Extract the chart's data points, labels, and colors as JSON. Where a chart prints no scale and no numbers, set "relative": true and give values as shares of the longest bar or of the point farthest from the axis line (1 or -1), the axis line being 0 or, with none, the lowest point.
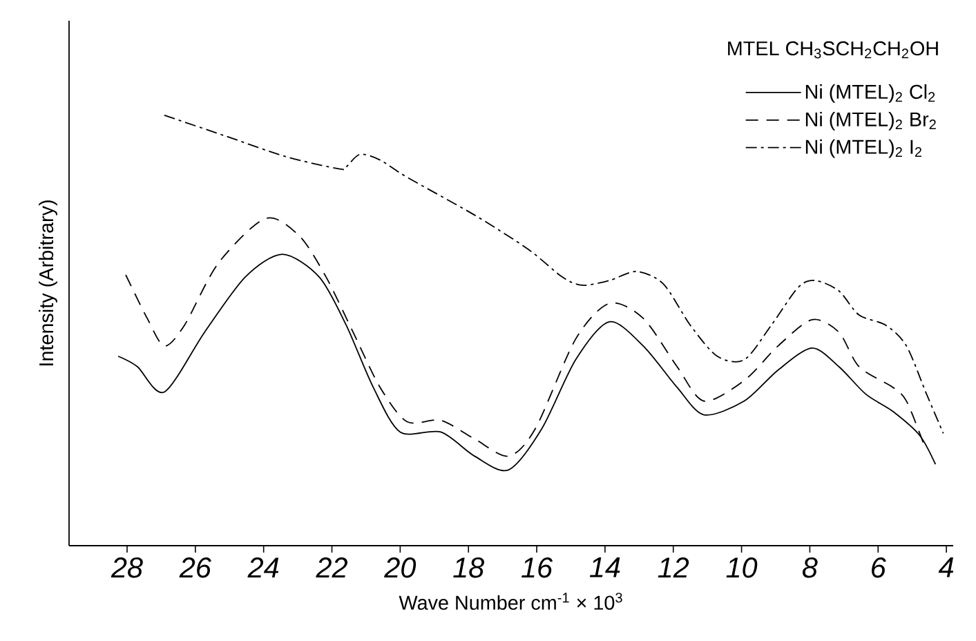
{
  "chart_data": {
    "type": "line",
    "relative": true,
    "xlabel": "Wave Number   cm$^{-1}$ × 10$^{3}$",
    "ylabel": "Intensity   (Arbitrary)",
    "legend_title": "MTEL      CH$_{3}$SCH$_{2}$CH$_{2}$OH",
    "legend": "top right",
    "xlim": [
      29.7,
      3.8
    ],
    "xticks": [
      28,
      26,
      24,
      22,
      20,
      18,
      16,
      14,
      12,
      10,
      8,
      6,
      4
    ],
    "grid": false,
    "marker": "none",
    "series": [
      {
        "name": "Ni (MTEL)$_{2}$ Cl$_{2}$",
        "color": "#000000",
        "line_style": "solid",
        "x": [
          28.26,
          27.7,
          26.91,
          25.73,
          24.54,
          23.45,
          22.37,
          21.58,
          20.79,
          20.0,
          18.81,
          17.82,
          16.83,
          15.85,
          14.86,
          13.87,
          12.88,
          11.89,
          11.1,
          9.92,
          8.93,
          7.94,
          7.15,
          6.36,
          5.57,
          4.78,
          4.32
        ],
        "values": [
          0.44,
          0.416,
          0.357,
          0.496,
          0.624,
          0.677,
          0.624,
          0.512,
          0.368,
          0.264,
          0.264,
          0.208,
          0.176,
          0.272,
          0.432,
          0.52,
          0.464,
          0.368,
          0.304,
          0.336,
          0.408,
          0.459,
          0.416,
          0.352,
          0.312,
          0.256,
          0.189
        ]
      },
      {
        "name": "Ni (MTEL)$_{2}$ Br$_{2}$",
        "color": "#000000",
        "line_style": "dashed",
        "x": [
          28.04,
          27.41,
          26.91,
          26.32,
          25.33,
          23.95,
          22.96,
          22.17,
          21.38,
          20.59,
          19.8,
          18.81,
          17.82,
          16.83,
          16.04,
          14.86,
          13.87,
          12.88,
          11.89,
          11.1,
          9.92,
          8.93,
          7.94,
          7.15,
          6.56,
          5.57,
          5.17,
          4.68
        ],
        "values": [
          0.629,
          0.528,
          0.464,
          0.512,
          0.656,
          0.76,
          0.72,
          0.624,
          0.496,
          0.368,
          0.288,
          0.291,
          0.248,
          0.208,
          0.272,
          0.48,
          0.563,
          0.528,
          0.416,
          0.336,
          0.384,
          0.464,
          0.525,
          0.496,
          0.416,
          0.368,
          0.336,
          0.24
        ]
      },
      {
        "name": "Ni (MTEL)$_{2}$ I$_{2}$",
        "color": "#000000",
        "line_style": "dashdot",
        "x": [
          26.91,
          25.13,
          23.36,
          21.77,
          21.58,
          21.18,
          20.59,
          19.8,
          17.82,
          16.24,
          15.25,
          14.66,
          13.87,
          13.08,
          12.29,
          11.5,
          10.71,
          9.92,
          9.13,
          8.34,
          7.84,
          7.15,
          6.56,
          5.77,
          5.17,
          4.58,
          4.09
        ],
        "values": [
          1.0,
          0.952,
          0.904,
          0.875,
          0.88,
          0.909,
          0.896,
          0.856,
          0.768,
          0.688,
          0.624,
          0.605,
          0.616,
          0.637,
          0.608,
          0.512,
          0.44,
          0.432,
          0.512,
          0.6,
          0.616,
          0.592,
          0.536,
          0.512,
          0.464,
          0.352,
          0.261
        ]
      }
    ]
  }
}
